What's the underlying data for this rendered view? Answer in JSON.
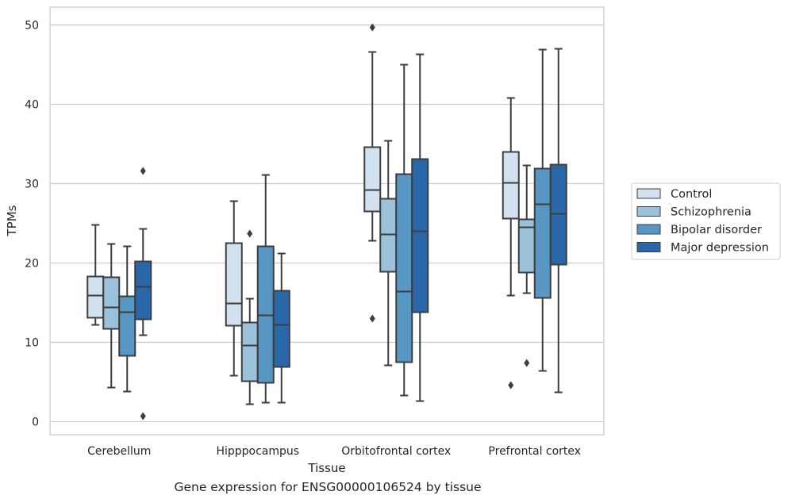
{
  "caption": "Gene expression for ENSG00000106524 by tissue",
  "chart_data": {
    "type": "box",
    "title": "",
    "xlabel": "Tissue",
    "ylabel": "TPMs",
    "ylim": [
      -1.5,
      52.2
    ],
    "yticks": [
      0,
      10,
      20,
      30,
      40,
      50
    ],
    "grid": "horizontal",
    "legend_position": "right",
    "categories": [
      "Cerebellum",
      "Hipppocampus",
      "Orbitofrontal cortex",
      "Prefrontal cortex"
    ],
    "series": [
      {
        "name": "Control",
        "color": "#d1e1f0",
        "boxes": [
          {
            "whisker_low": 12.2,
            "q1": 13.1,
            "median": 15.9,
            "q3": 18.3,
            "whisker_high": 24.8,
            "outliers": []
          },
          {
            "whisker_low": 5.8,
            "q1": 12.1,
            "median": 14.9,
            "q3": 22.5,
            "whisker_high": 27.8,
            "outliers": []
          },
          {
            "whisker_low": 22.8,
            "q1": 26.5,
            "median": 29.2,
            "q3": 34.6,
            "whisker_high": 46.6,
            "outliers": [
              49.7,
              13.0
            ]
          },
          {
            "whisker_low": 15.9,
            "q1": 25.6,
            "median": 30.1,
            "q3": 34.0,
            "whisker_high": 40.8,
            "outliers": [
              4.6
            ]
          }
        ]
      },
      {
        "name": "Schizophrenia",
        "color": "#9bc1db",
        "boxes": [
          {
            "whisker_low": 4.3,
            "q1": 11.7,
            "median": 14.4,
            "q3": 18.2,
            "whisker_high": 22.4,
            "outliers": []
          },
          {
            "whisker_low": 2.2,
            "q1": 5.1,
            "median": 9.6,
            "q3": 12.5,
            "whisker_high": 15.5,
            "outliers": [
              23.7
            ]
          },
          {
            "whisker_low": 7.1,
            "q1": 18.9,
            "median": 23.6,
            "q3": 28.1,
            "whisker_high": 35.4,
            "outliers": []
          },
          {
            "whisker_low": 16.2,
            "q1": 18.8,
            "median": 24.5,
            "q3": 25.5,
            "whisker_high": 32.3,
            "outliers": [
              7.4
            ]
          }
        ]
      },
      {
        "name": "Bipolar disorder",
        "color": "#5896c3",
        "boxes": [
          {
            "whisker_low": 3.8,
            "q1": 8.3,
            "median": 13.8,
            "q3": 15.8,
            "whisker_high": 22.1,
            "outliers": []
          },
          {
            "whisker_low": 2.4,
            "q1": 4.9,
            "median": 13.4,
            "q3": 22.1,
            "whisker_high": 31.1,
            "outliers": []
          },
          {
            "whisker_low": 3.3,
            "q1": 7.5,
            "median": 16.4,
            "q3": 31.2,
            "whisker_high": 45.0,
            "outliers": []
          },
          {
            "whisker_low": 6.4,
            "q1": 15.6,
            "median": 27.4,
            "q3": 31.9,
            "whisker_high": 46.9,
            "outliers": []
          }
        ]
      },
      {
        "name": "Major depression",
        "color": "#2a67a8",
        "boxes": [
          {
            "whisker_low": 10.9,
            "q1": 12.9,
            "median": 17.0,
            "q3": 20.2,
            "whisker_high": 24.3,
            "outliers": [
              31.6,
              0.7
            ]
          },
          {
            "whisker_low": 2.4,
            "q1": 6.9,
            "median": 12.2,
            "q3": 16.5,
            "whisker_high": 21.2,
            "outliers": []
          },
          {
            "whisker_low": 2.6,
            "q1": 13.8,
            "median": 24.0,
            "q3": 33.1,
            "whisker_high": 46.3,
            "outliers": []
          },
          {
            "whisker_low": 3.7,
            "q1": 19.8,
            "median": 26.2,
            "q3": 32.4,
            "whisker_high": 47.0,
            "outliers": []
          }
        ]
      }
    ]
  }
}
